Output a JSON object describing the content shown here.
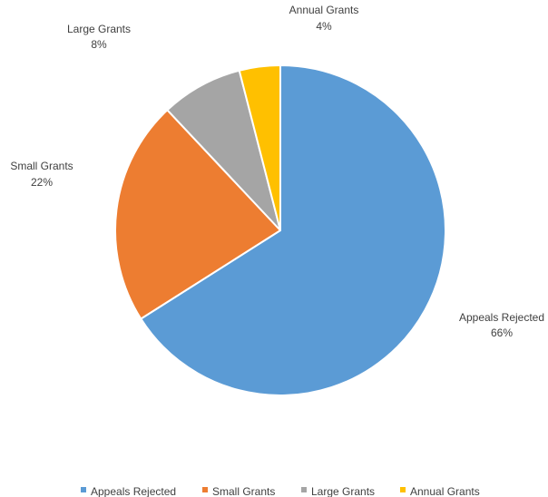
{
  "chart_data": {
    "type": "pie",
    "title": "",
    "categories": [
      "Appeals Rejected",
      "Small Grants",
      "Large Grants",
      "Annual Grants"
    ],
    "values": [
      66,
      22,
      8,
      4
    ],
    "percent_labels": [
      "66%",
      "22%",
      "8%",
      "4%"
    ],
    "colors": [
      "#5b9bd5",
      "#ed7d31",
      "#a5a5a5",
      "#ffc000"
    ],
    "start_angle_deg": 0,
    "direction": "clockwise",
    "legend_position": "bottom",
    "slice_border_color": "#ffffff"
  }
}
